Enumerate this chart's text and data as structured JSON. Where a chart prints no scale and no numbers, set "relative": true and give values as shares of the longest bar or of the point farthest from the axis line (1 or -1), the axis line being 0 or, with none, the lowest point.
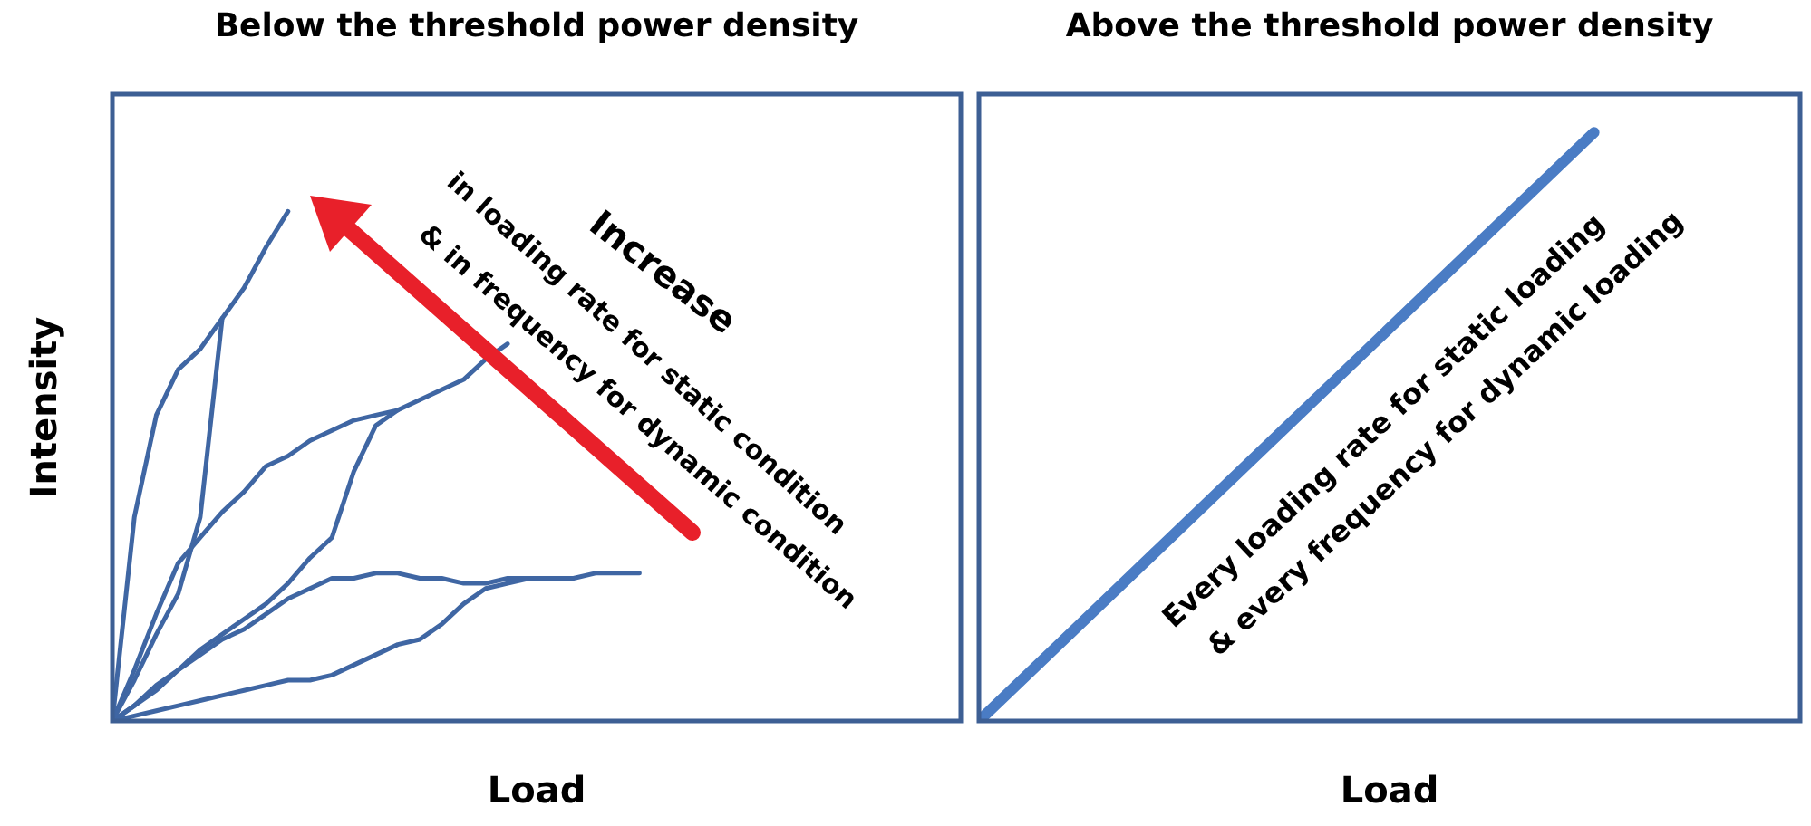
{
  "chart_data": [
    {
      "type": "line",
      "title": "Below the threshold power density",
      "xlabel": "Load",
      "ylabel": "Intensity",
      "relative": true,
      "marker": "none",
      "annotations": [
        "Increase",
        "in loading rate for static condition",
        "& in frequency for dynamic condition"
      ],
      "categories": [
        null,
        null,
        null,
        null,
        null,
        null,
        null,
        null,
        null,
        null,
        null,
        null,
        null,
        null,
        null,
        null,
        null,
        null,
        null,
        null,
        null,
        null,
        null,
        null,
        null
      ],
      "series": [
        {
          "color": "#3f66a3",
          "values": [
            0,
            0.4,
            0.6,
            0.69,
            0.73,
            0.79,
            0.85,
            0.93,
            1,
            null,
            null,
            null,
            null,
            null,
            null,
            null,
            null,
            null,
            null,
            null,
            null,
            null,
            null,
            null,
            null
          ]
        },
        {
          "color": "#3f66a3",
          "values": [
            0,
            0.08,
            0.17,
            0.25,
            0.4,
            0.79,
            null,
            null,
            null,
            null,
            null,
            null,
            null,
            null,
            null,
            null,
            null,
            null,
            null,
            null,
            null,
            null,
            null,
            null,
            null
          ]
        },
        {
          "color": "#3f66a3",
          "values": [
            0,
            0.1,
            0.21,
            0.31,
            0.36,
            0.41,
            0.45,
            0.5,
            0.52,
            0.55,
            0.57,
            0.59,
            0.6,
            0.61,
            0.63,
            0.65,
            0.67,
            0.71,
            0.74,
            null,
            null,
            null,
            null,
            null,
            null
          ]
        },
        {
          "color": "#3f66a3",
          "values": [
            0,
            0.03,
            0.07,
            0.1,
            0.14,
            0.17,
            0.2,
            0.23,
            0.27,
            0.32,
            0.36,
            0.49,
            0.58,
            0.61,
            null,
            null,
            null,
            null,
            null,
            null,
            null,
            null,
            null,
            null,
            null
          ]
        },
        {
          "color": "#3f66a3",
          "values": [
            0,
            0.03,
            0.06,
            0.1,
            0.13,
            0.16,
            0.18,
            0.21,
            0.24,
            0.26,
            0.28,
            0.28,
            0.29,
            0.29,
            0.28,
            0.28,
            0.27,
            0.27,
            0.28,
            0.28,
            0.28,
            0.28,
            0.29,
            0.29,
            0.29
          ]
        },
        {
          "color": "#3f66a3",
          "values": [
            0,
            0.01,
            0.02,
            0.03,
            0.04,
            0.05,
            0.06,
            0.07,
            0.08,
            0.08,
            0.09,
            0.11,
            0.13,
            0.15,
            0.16,
            0.19,
            0.23,
            0.26,
            0.27,
            0.28,
            null,
            null,
            null,
            null,
            null
          ]
        }
      ]
    },
    {
      "type": "line",
      "title": "Above the threshold power density",
      "xlabel": "Load",
      "relative": true,
      "marker": "none",
      "annotations": [
        "Every loading rate for static loading",
        "& every frequency for dynamic loading"
      ],
      "categories": [
        null,
        null
      ],
      "series": [
        {
          "color": "#4a7cc4",
          "values": [
            0,
            1
          ]
        }
      ]
    }
  ]
}
